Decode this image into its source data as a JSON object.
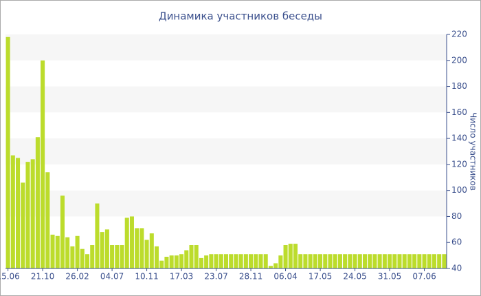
{
  "chart_data": {
    "type": "bar",
    "title": "Динамика участников беседы",
    "y_label": "Число участников",
    "categories": [
      "15.06",
      null,
      null,
      null,
      null,
      null,
      null,
      "21.10",
      null,
      null,
      null,
      null,
      null,
      null,
      "26.02",
      null,
      null,
      null,
      null,
      null,
      null,
      "04.07",
      null,
      null,
      null,
      null,
      null,
      null,
      "10.11",
      null,
      null,
      null,
      null,
      null,
      null,
      "17.03",
      null,
      null,
      null,
      null,
      null,
      null,
      "23.07",
      null,
      null,
      null,
      null,
      null,
      null,
      "28.11",
      null,
      null,
      null,
      null,
      null,
      null,
      "06.04",
      null,
      null,
      null,
      null,
      null,
      null,
      "17.05",
      null,
      null,
      null,
      null,
      null,
      null,
      "24.05",
      null,
      null,
      null,
      null,
      null,
      null,
      "31.05",
      null,
      null,
      null,
      null,
      null,
      null,
      "07.06",
      null,
      null,
      null,
      null
    ],
    "values": [
      218,
      127,
      125,
      106,
      122,
      124,
      141,
      200,
      114,
      66,
      65,
      96,
      64,
      57,
      65,
      55,
      51,
      58,
      90,
      68,
      70,
      58,
      58,
      58,
      79,
      80,
      71,
      71,
      62,
      67,
      57,
      46,
      49,
      50,
      50,
      51,
      54,
      58,
      58,
      48,
      50,
      51,
      51,
      51,
      51,
      51,
      51,
      51,
      51,
      51,
      51,
      51,
      51,
      42,
      44,
      50,
      58,
      59,
      59,
      51,
      51,
      51,
      51,
      51,
      51,
      51,
      51,
      51,
      51,
      51,
      51,
      51,
      51,
      51,
      51,
      51,
      51,
      51,
      51,
      51,
      51,
      51,
      51,
      51,
      51,
      51,
      51,
      51,
      51
    ],
    "color": "#bcdc2c",
    "ylim": [
      40,
      220
    ],
    "yticks": [
      40,
      60,
      80,
      100,
      120,
      140,
      160,
      180,
      200,
      220
    ],
    "grid": true,
    "y_axis_side": "right"
  }
}
